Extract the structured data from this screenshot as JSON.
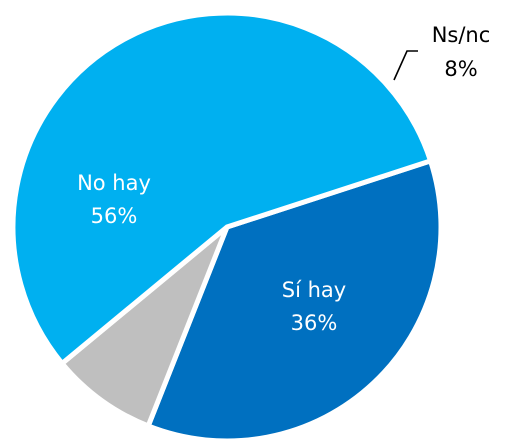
{
  "chart_data": {
    "type": "pie",
    "slices": [
      {
        "label": "Sí hay",
        "value": 36,
        "value_label": "36%",
        "color": "#0070C0"
      },
      {
        "label": "Ns/nc",
        "value": 8,
        "value_label": "8%",
        "color": "#BFBFBF"
      },
      {
        "label": "No hay",
        "value": 56,
        "value_label": "56%",
        "color": "#00B0F0"
      }
    ],
    "unit": "%",
    "legend": "none",
    "label_placement": "Sí hay and No hay inside their slices; Ns/nc outside with a leader line"
  }
}
